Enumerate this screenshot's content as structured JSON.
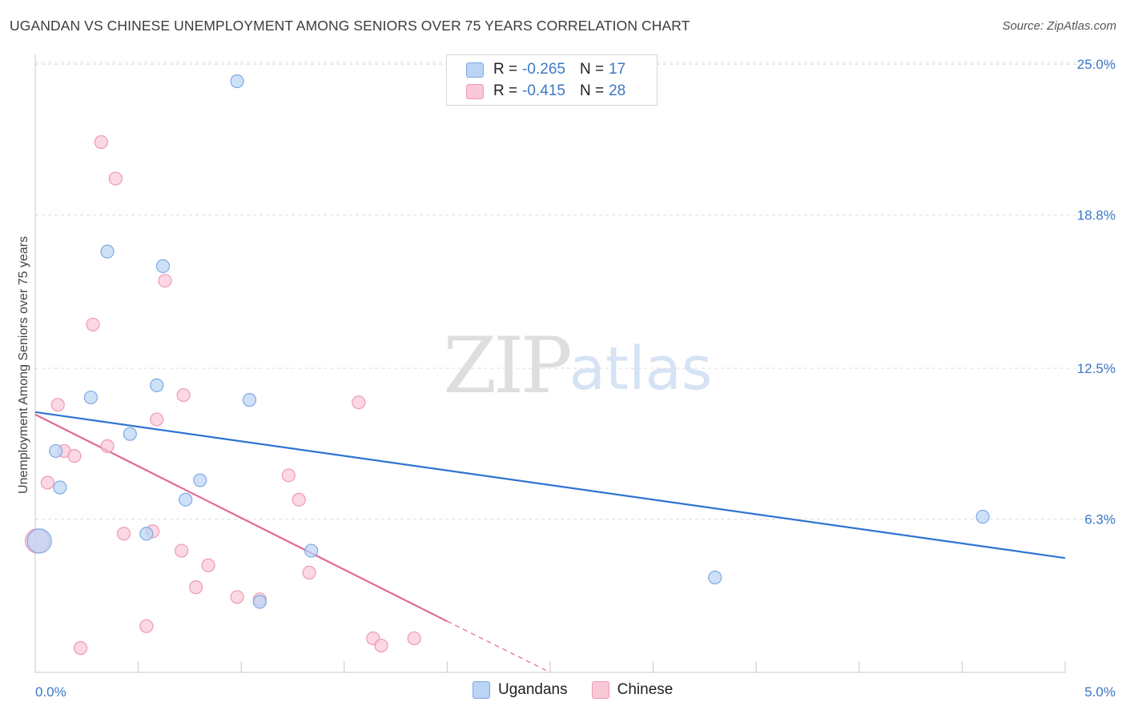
{
  "title": "UGANDAN VS CHINESE UNEMPLOYMENT AMONG SENIORS OVER 75 YEARS CORRELATION CHART",
  "source": "Source: ZipAtlas.com",
  "watermark": {
    "zip": "ZIP",
    "atlas": "atlas"
  },
  "legend": {
    "r_label": "R =",
    "n_label": "N =",
    "rows": [
      {
        "r": "-0.265",
        "n": "17",
        "fill": "#b9d4f5",
        "stroke": "#7fa9e0"
      },
      {
        "r": "-0.415",
        "n": "28",
        "fill": "#f9c8d7",
        "stroke": "#ee9ab4"
      }
    ]
  },
  "bottom_legend": [
    {
      "label": "Ugandans",
      "fill": "#b9d4f5",
      "stroke": "#7fa9e0"
    },
    {
      "label": "Chinese",
      "fill": "#f9c8d7",
      "stroke": "#ee9ab4"
    }
  ],
  "chart_data": {
    "type": "scatter",
    "title": "UGANDAN VS CHINESE UNEMPLOYMENT AMONG SENIORS OVER 75 YEARS CORRELATION CHART",
    "xlabel": "",
    "ylabel": "Unemployment Among Seniors over 75 years",
    "xlim": [
      0,
      5.0
    ],
    "ylim": [
      0,
      25.6
    ],
    "x_tick_labels": [
      "0.0%",
      "5.0%"
    ],
    "y_ticks": [
      6.3,
      12.5,
      18.8,
      25.0
    ],
    "y_tick_labels": [
      "6.3%",
      "12.5%",
      "18.8%",
      "25.0%"
    ],
    "grid": true,
    "legend_position": "top-center",
    "colors": {
      "ugandans": "#2f74d0",
      "chinese": "#e06a96"
    },
    "series": [
      {
        "name": "Ugandans",
        "r": -0.265,
        "n": 17,
        "points": [
          [
            0.02,
            5.4
          ],
          [
            0.1,
            9.1
          ],
          [
            0.12,
            7.6
          ],
          [
            0.27,
            11.3
          ],
          [
            0.35,
            17.3
          ],
          [
            0.46,
            9.8
          ],
          [
            0.54,
            5.7
          ],
          [
            0.59,
            11.8
          ],
          [
            0.62,
            16.7
          ],
          [
            0.73,
            7.1
          ],
          [
            0.8,
            7.9
          ],
          [
            0.98,
            24.3
          ],
          [
            1.04,
            11.2
          ],
          [
            1.09,
            2.9
          ],
          [
            1.34,
            5.0
          ],
          [
            3.3,
            3.9
          ],
          [
            4.6,
            6.4
          ]
        ],
        "trend": {
          "x0": 0.0,
          "y0": 10.7,
          "x1": 5.0,
          "y1": 4.7
        }
      },
      {
        "name": "Chinese",
        "r": -0.415,
        "n": 28,
        "points": [
          [
            0.01,
            5.4
          ],
          [
            0.06,
            7.8
          ],
          [
            0.11,
            11.0
          ],
          [
            0.14,
            9.1
          ],
          [
            0.19,
            8.9
          ],
          [
            0.22,
            1.0
          ],
          [
            0.28,
            14.3
          ],
          [
            0.32,
            21.8
          ],
          [
            0.35,
            9.3
          ],
          [
            0.39,
            20.3
          ],
          [
            0.43,
            5.7
          ],
          [
            0.54,
            1.9
          ],
          [
            0.57,
            5.8
          ],
          [
            0.59,
            10.4
          ],
          [
            0.63,
            16.1
          ],
          [
            0.71,
            5.0
          ],
          [
            0.72,
            11.4
          ],
          [
            0.78,
            3.5
          ],
          [
            0.84,
            4.4
          ],
          [
            0.98,
            3.1
          ],
          [
            1.09,
            3.0
          ],
          [
            1.23,
            8.1
          ],
          [
            1.28,
            7.1
          ],
          [
            1.33,
            4.1
          ],
          [
            1.57,
            11.1
          ],
          [
            1.64,
            1.4
          ],
          [
            1.68,
            1.1
          ],
          [
            1.84,
            1.4
          ]
        ],
        "trend": {
          "x0": 0.0,
          "y0": 10.6,
          "x1": 2.0,
          "y1": 2.1
        },
        "trend_extension": {
          "x0": 2.0,
          "y0": 2.1,
          "x1": 2.5,
          "y1": 0.0
        }
      }
    ]
  }
}
